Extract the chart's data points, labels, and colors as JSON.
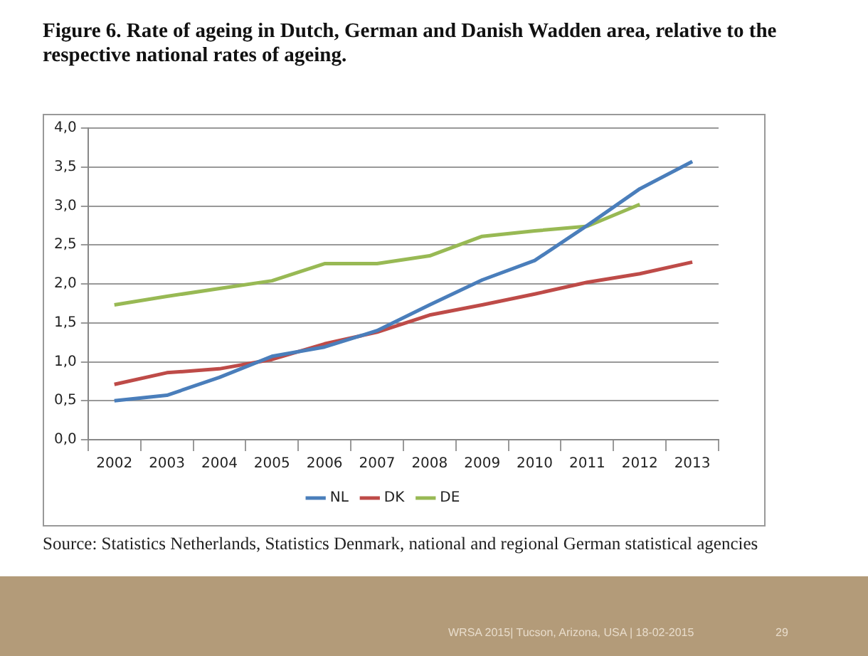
{
  "chart_data": {
    "type": "line",
    "title": "Figure 6. Rate of ageing in Dutch, German and Danish Wadden area, relative to the respective national rates of ageing.",
    "categories": [
      "2002",
      "2003",
      "2004",
      "2005",
      "2006",
      "2007",
      "2008",
      "2009",
      "2010",
      "2011",
      "2012",
      "2013"
    ],
    "series": [
      {
        "name": "NL",
        "color": "#4a7ebb",
        "values": [
          0.5,
          0.57,
          0.8,
          1.07,
          1.19,
          1.4,
          1.73,
          2.05,
          2.3,
          2.75,
          3.22,
          3.57
        ]
      },
      {
        "name": "DK",
        "color": "#be4b48",
        "values": [
          0.71,
          0.86,
          0.91,
          1.03,
          1.23,
          1.38,
          1.6,
          1.73,
          1.87,
          2.02,
          2.13,
          2.28
        ]
      },
      {
        "name": "DE",
        "color": "#98b954",
        "values": [
          1.73,
          1.84,
          1.94,
          2.04,
          2.26,
          2.26,
          2.36,
          2.61,
          2.68,
          2.74,
          3.02,
          null
        ]
      }
    ],
    "ylim": [
      0,
      4
    ],
    "yticks": [
      {
        "value": 0,
        "label": "0,0"
      },
      {
        "value": 0.5,
        "label": "0,5"
      },
      {
        "value": 1,
        "label": "1,0"
      },
      {
        "value": 1.5,
        "label": "1,5"
      },
      {
        "value": 2,
        "label": "2,0"
      },
      {
        "value": 2.5,
        "label": "2,5"
      },
      {
        "value": 3,
        "label": "3,0"
      },
      {
        "value": 3.5,
        "label": "3,5"
      },
      {
        "value": 4,
        "label": "4,0"
      }
    ],
    "grid": "y",
    "legend": "bottom",
    "marker": "none",
    "line_style": "solid",
    "annotations": [
      "Source: Statistics Netherlands, Statistics Denmark, national and regional German statistical agencies",
      "WRSA 2015| Tucson, Arizona, USA |  18-02-2015",
      "29"
    ]
  }
}
